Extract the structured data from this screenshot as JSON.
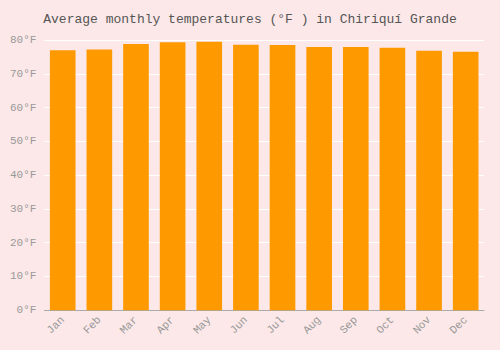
{
  "chart_data": {
    "type": "bar",
    "title": "Average monthly temperatures (°F ) in Chiriquí Grande",
    "categories": [
      "Jan",
      "Feb",
      "Mar",
      "Apr",
      "May",
      "Jun",
      "Jul",
      "Aug",
      "Sep",
      "Oct",
      "Nov",
      "Dec"
    ],
    "values": [
      77.0,
      77.2,
      78.8,
      79.3,
      79.5,
      78.6,
      78.5,
      77.9,
      77.9,
      77.7,
      76.8,
      76.5
    ],
    "color": "#ff9900",
    "ylim": [
      0,
      80
    ],
    "yticks": [
      {
        "value": 0,
        "label": "0°F"
      },
      {
        "value": 10,
        "label": "10°F"
      },
      {
        "value": 20,
        "label": "20°F"
      },
      {
        "value": 30,
        "label": "30°F"
      },
      {
        "value": 40,
        "label": "40°F"
      },
      {
        "value": 50,
        "label": "50°F"
      },
      {
        "value": 60,
        "label": "60°F"
      },
      {
        "value": 70,
        "label": "70°F"
      },
      {
        "value": 80,
        "label": "80°F"
      }
    ],
    "grid": true
  }
}
